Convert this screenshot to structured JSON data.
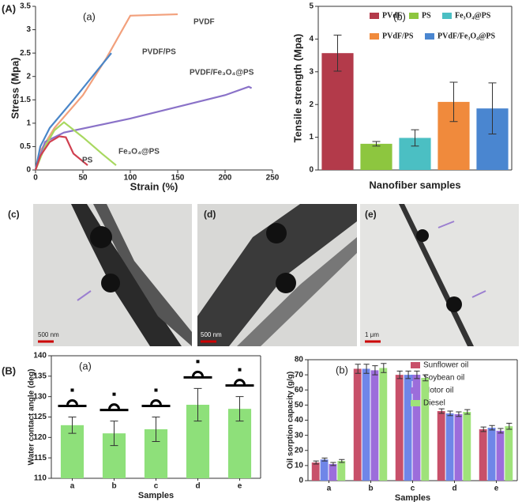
{
  "panel_labels": [
    "(A)",
    "(B)"
  ],
  "micrographs": [
    {
      "label": "(c)",
      "scale_bar": "500 nm"
    },
    {
      "label": "(d)",
      "scale_bar": "500 nm"
    },
    {
      "label": "(e)",
      "scale_bar": "1 μm"
    }
  ],
  "chart_data": [
    {
      "type": "line",
      "panel": "(a)",
      "x_label": "Strain (%)",
      "y_label": "Stress (Mpa)",
      "xlim": [
        0,
        250
      ],
      "xticks": [
        0,
        50,
        100,
        150,
        200,
        250
      ],
      "ylim": [
        0,
        3.5
      ],
      "yticks": [
        0,
        0.5,
        1,
        1.5,
        2,
        2.5,
        3,
        3.5
      ],
      "series": [
        {
          "name": "PVDF",
          "color": "#f2a07c",
          "x": [
            0,
            5,
            20,
            50,
            75,
            100,
            150
          ],
          "values": [
            0,
            0.4,
            0.9,
            1.6,
            2.4,
            3.3,
            3.33
          ]
        },
        {
          "name": "PVDF/PS",
          "color": "#4a86c8",
          "x": [
            0,
            5,
            15,
            40,
            60,
            80
          ],
          "values": [
            0,
            0.5,
            0.9,
            1.5,
            2.0,
            2.5
          ]
        },
        {
          "name": "PVDF/Fe₃O₄@PS",
          "color": "#8a72c8",
          "x": [
            0,
            5,
            10,
            30,
            100,
            200,
            225,
            228
          ],
          "values": [
            0,
            0.3,
            0.6,
            0.8,
            1.1,
            1.6,
            1.78,
            1.75
          ]
        },
        {
          "name": "Fe₃O₄@PS",
          "color": "#a8d860",
          "x": [
            0,
            10,
            20,
            30,
            50,
            70,
            85
          ],
          "values": [
            0,
            0.5,
            0.85,
            1.02,
            0.7,
            0.35,
            0.1
          ]
        },
        {
          "name": "PS",
          "color": "#d04050",
          "x": [
            0,
            5,
            15,
            25,
            32,
            40,
            55
          ],
          "values": [
            0,
            0.3,
            0.6,
            0.72,
            0.7,
            0.35,
            0.1
          ]
        }
      ]
    },
    {
      "type": "bar",
      "panel": "(b)",
      "x_label": "Nanofiber samples",
      "y_label": "Tensile strength (Mpa)",
      "ylim": [
        0,
        5
      ],
      "yticks": [
        0,
        1,
        2,
        3,
        4,
        5
      ],
      "series": [
        {
          "name": "PVdF",
          "color": "#b33a4a",
          "values": [
            3.57
          ],
          "errors": [
            0.55
          ]
        },
        {
          "name": "PS",
          "color": "#8dc63f",
          "values": [
            0.8
          ],
          "errors": [
            0.07
          ]
        },
        {
          "name": "Fe₃O₄@PS",
          "color": "#4bbfc3",
          "values": [
            0.98
          ],
          "errors": [
            0.25
          ]
        },
        {
          "name": "PVdF/PS",
          "color": "#f08a3c",
          "values": [
            2.08
          ],
          "errors": [
            0.6
          ]
        },
        {
          "name": "PVdF/Fe₃O₄@PS",
          "color": "#4a86d0",
          "values": [
            1.88
          ],
          "errors": [
            0.78
          ]
        }
      ]
    },
    {
      "type": "bar",
      "panel": "(a)",
      "x_label": "Samples",
      "y_label": "Water contact angle (deg)",
      "categories": [
        "a",
        "b",
        "c",
        "d",
        "e"
      ],
      "ylim": [
        110,
        140
      ],
      "yticks": [
        110,
        115,
        120,
        125,
        130,
        135,
        140
      ],
      "series": [
        {
          "color": "#8ee07a",
          "values": [
            123,
            121,
            122,
            128,
            127
          ],
          "errors": [
            2,
            3,
            3,
            4,
            3
          ]
        }
      ]
    },
    {
      "type": "bar",
      "panel": "(b)",
      "x_label": "Samples",
      "y_label": "Oil sorption capacity (g/g)",
      "categories": [
        "a",
        "b",
        "c",
        "d",
        "e"
      ],
      "ylim": [
        0,
        80
      ],
      "yticks": [
        0,
        10,
        20,
        30,
        40,
        50,
        60,
        70,
        80
      ],
      "series": [
        {
          "name": "Sunflower oil",
          "color": "#c8506a",
          "values": [
            12,
            74,
            70,
            46,
            34
          ],
          "errors": [
            1,
            3,
            2.5,
            1.5,
            1.5
          ]
        },
        {
          "name": "Soybean oil",
          "color": "#6f86e8",
          "values": [
            14,
            74,
            70,
            44.5,
            35
          ],
          "errors": [
            1,
            3,
            2.5,
            1.5,
            1.5
          ]
        },
        {
          "name": "Motor oil",
          "color": "#9c6ddb",
          "values": [
            11,
            73,
            70,
            44,
            33
          ],
          "errors": [
            1,
            3,
            2.5,
            1.5,
            1.5
          ]
        },
        {
          "name": "Diesel",
          "color": "#9fe27a",
          "values": [
            13,
            74.5,
            68,
            45.5,
            36
          ],
          "errors": [
            1,
            3,
            2,
            1.5,
            2
          ]
        }
      ]
    }
  ]
}
